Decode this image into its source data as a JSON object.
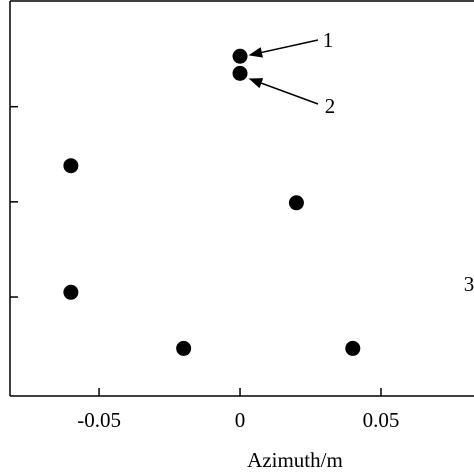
{
  "chart_data": {
    "type": "scatter",
    "x_label": "Azimuth/m",
    "x": [
      0,
      0,
      -0.06,
      0.02,
      -0.06,
      -0.02,
      0.04
    ],
    "y": [
      3.53,
      3.35,
      2.38,
      1.99,
      1.05,
      0.46,
      0.46
    ],
    "color": "#000000",
    "xlim": [
      -0.0816,
      0.083
    ],
    "xticks": [
      -0.05,
      0,
      0.05
    ],
    "ylim": [
      -0.04,
      4.1
    ],
    "yticks": [
      1,
      2,
      3
    ],
    "annotations": [
      "1",
      "2",
      "3"
    ]
  }
}
